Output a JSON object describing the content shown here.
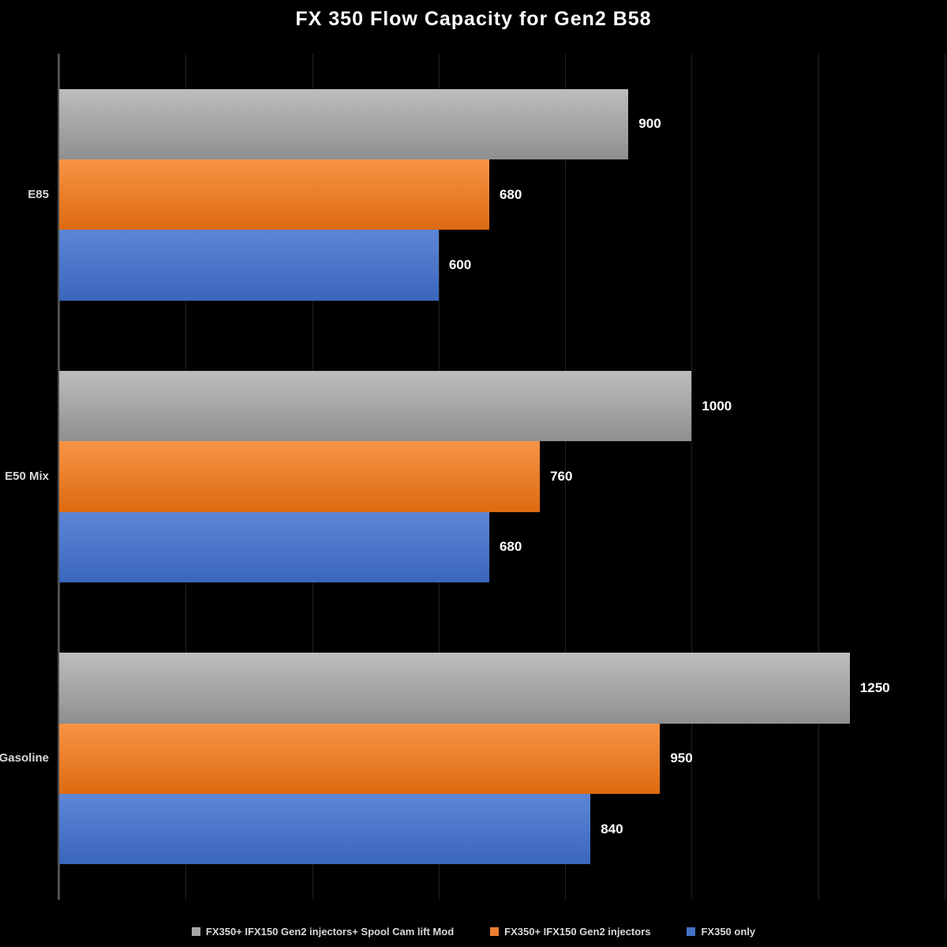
{
  "chart_data": {
    "type": "bar",
    "orientation": "horizontal",
    "title": "FX 350 Flow Capacity for Gen2 B58",
    "categories": [
      "E85",
      "E50 Mix",
      "Gasoline"
    ],
    "series": [
      {
        "name": "FX350+ IFX150 Gen2 injectors+ Spool Cam lift Mod",
        "marker_color": "#a6a6a6",
        "color_top": "#bdbdbd",
        "color_bottom": "#8f8f8f",
        "values": [
          900,
          1000,
          1250
        ]
      },
      {
        "name": "FX350+ IFX150 Gen2 injectors",
        "marker_color": "#ed7d31",
        "color_top": "#f79445",
        "color_bottom": "#dd6a10",
        "values": [
          680,
          760,
          950
        ]
      },
      {
        "name": "FX350 only",
        "marker_color": "#4472c4",
        "color_top": "#5d86d7",
        "color_bottom": "#3a66bb",
        "values": [
          600,
          680,
          840
        ]
      }
    ],
    "value_labels": [
      [
        "900",
        "680",
        "600"
      ],
      [
        "1000",
        "760",
        "680"
      ],
      [
        "1250",
        "950",
        "840"
      ]
    ],
    "xlim": [
      0,
      1400
    ],
    "gridline_step": 200,
    "grid": true,
    "x_tick_labels_visible": false,
    "legend_position": "bottom",
    "background_color": "#000000",
    "axis_color": "#4d4d4d",
    "gridline_color": "#212121"
  }
}
